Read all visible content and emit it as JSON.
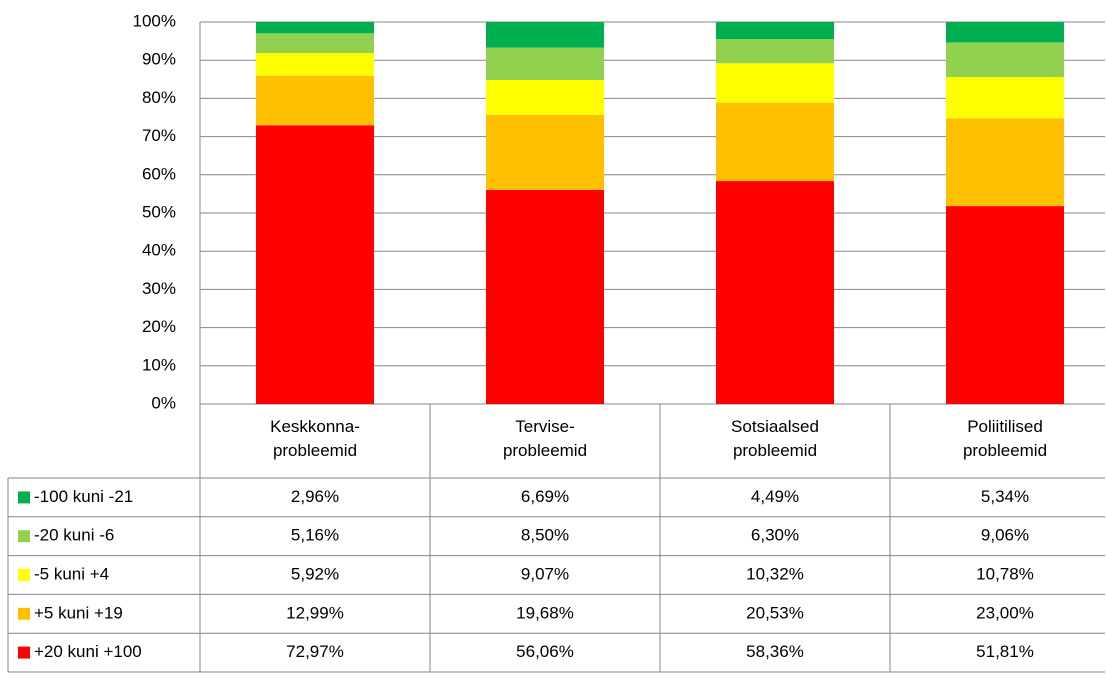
{
  "chart_data": {
    "type": "stacked_bar_100",
    "categories": [
      "Keskkonna-\nprobleemid",
      "Tervise-\nprobleemid",
      "Sotsiaalsed\nprobleemid",
      "Poliitilised\nprobleemid"
    ],
    "series": [
      {
        "name": "-100 kuni -21",
        "color": "#00b050",
        "values": [
          2.96,
          6.69,
          4.49,
          5.34
        ],
        "value_labels": [
          "2,96%",
          "6,69%",
          "4,49%",
          "5,34%"
        ]
      },
      {
        "name": "-20 kuni -6",
        "color": "#92d050",
        "values": [
          5.16,
          8.5,
          6.3,
          9.06
        ],
        "value_labels": [
          "5,16%",
          "8,50%",
          "6,30%",
          "9,06%"
        ]
      },
      {
        "name": "-5 kuni +4",
        "color": "#ffff00",
        "values": [
          5.92,
          9.07,
          10.32,
          10.78
        ],
        "value_labels": [
          "5,92%",
          "9,07%",
          "10,32%",
          "10,78%"
        ]
      },
      {
        "name": "+5 kuni +19",
        "color": "#ffc000",
        "values": [
          12.99,
          19.68,
          20.53,
          23.0
        ],
        "value_labels": [
          "12,99%",
          "19,68%",
          "20,53%",
          "23,00%"
        ]
      },
      {
        "name": "+20 kuni +100",
        "color": "#ff0000",
        "values": [
          72.97,
          56.06,
          58.36,
          51.81
        ],
        "value_labels": [
          "72,97%",
          "56,06%",
          "58,36%",
          "51,81%"
        ]
      }
    ],
    "ylim": [
      0,
      100
    ],
    "yticks": [
      {
        "value": 0,
        "label": "0%"
      },
      {
        "value": 10,
        "label": "10%"
      },
      {
        "value": 20,
        "label": "20%"
      },
      {
        "value": 30,
        "label": "30%"
      },
      {
        "value": 40,
        "label": "40%"
      },
      {
        "value": 50,
        "label": "50%"
      },
      {
        "value": 60,
        "label": "60%"
      },
      {
        "value": 70,
        "label": "70%"
      },
      {
        "value": 80,
        "label": "80%"
      },
      {
        "value": 90,
        "label": "90%"
      },
      {
        "value": 100,
        "label": "100%"
      }
    ],
    "grid": true
  }
}
